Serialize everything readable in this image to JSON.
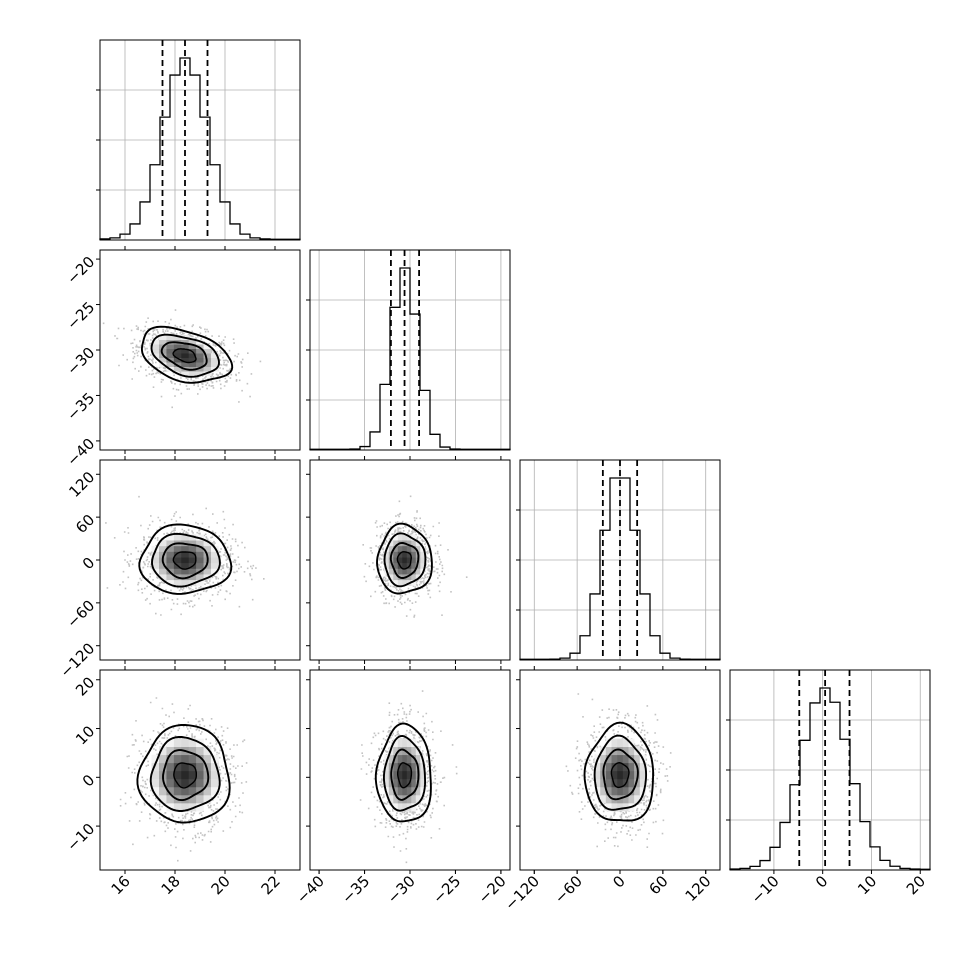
{
  "chart_data": {
    "type": "corner",
    "title": "",
    "grid": true,
    "parameters": [
      {
        "id": "p0",
        "xlim": [
          15,
          23
        ],
        "ticks": [
          16,
          18,
          20,
          22
        ],
        "tick_labels": [
          "16",
          "18",
          "20",
          "22"
        ],
        "mean": 18.4,
        "sd": 0.9,
        "quantiles": [
          17.5,
          18.4,
          19.3
        ]
      },
      {
        "id": "p1",
        "xlim": [
          -41,
          -19
        ],
        "ticks": [
          -40,
          -35,
          -30,
          -25,
          -20
        ],
        "tick_labels": [
          "−40",
          "−35",
          "−30",
          "−25",
          "−20"
        ],
        "mean": -30.6,
        "sd": 1.5,
        "quantiles": [
          -32.1,
          -30.6,
          -29.0
        ]
      },
      {
        "id": "p2",
        "xlim": [
          -140,
          140
        ],
        "ticks": [
          -120,
          -60,
          0,
          60,
          120
        ],
        "tick_labels": [
          "−120",
          "−60",
          "0",
          "60",
          "120"
        ],
        "mean": 0,
        "sd": 24,
        "quantiles": [
          -24,
          0,
          24
        ]
      },
      {
        "id": "p3",
        "xlim": [
          -19,
          22
        ],
        "ticks": [
          -10,
          0,
          10,
          20
        ],
        "tick_labels": [
          "−10",
          "0",
          "10",
          "20"
        ],
        "mean": 0.5,
        "sd": 5,
        "quantiles": [
          -4.8,
          0.5,
          5.5
        ]
      }
    ],
    "correlations": [
      {
        "pair": [
          0,
          1
        ],
        "rho": -0.35
      },
      {
        "pair": [
          0,
          2
        ],
        "rho": 0.0
      },
      {
        "pair": [
          0,
          3
        ],
        "rho": 0.0
      },
      {
        "pair": [
          1,
          2
        ],
        "rho": 0.0
      },
      {
        "pair": [
          1,
          3
        ],
        "rho": 0.0
      },
      {
        "pair": [
          2,
          3
        ],
        "rho": 0.0
      }
    ],
    "contour_levels_sigma": [
      0.5,
      1.0,
      1.5,
      2.0
    ],
    "histogram_bins": 20,
    "colors": {
      "line": "#000000",
      "grid": "#b0b0b0",
      "points": "#7a7a7a",
      "density": "#000000"
    }
  }
}
